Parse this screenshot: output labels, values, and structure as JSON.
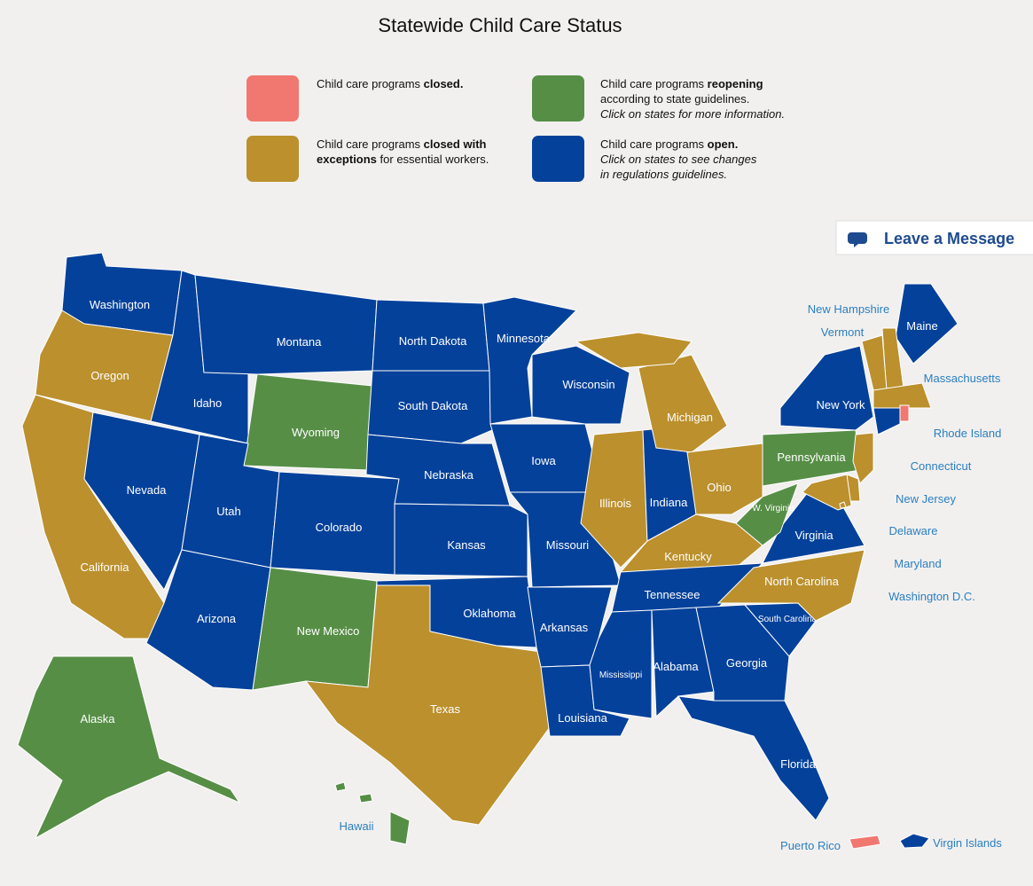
{
  "title": "Statewide Child Care Status",
  "legend": {
    "items": [
      {
        "status": "closed",
        "text": "Child care programs",
        "bold": "closed."
      },
      {
        "status": "reopening",
        "text": "Child care programs",
        "bold": "reopening",
        "rest": "according to state guidelines.",
        "note": "Click on states for more information."
      },
      {
        "status": "exceptions",
        "text": "Child care programs",
        "bold": "closed with exceptions",
        "rest": "for essential workers."
      },
      {
        "status": "open",
        "text": "Child care programs",
        "bold": "open.",
        "note": "Click on states to see changes in regulations guidelines."
      }
    ]
  },
  "statuses": {
    "closed": "#f07870",
    "exceptions": "#bb902d",
    "reopening": "#568e46",
    "open": "#04419a"
  },
  "button": "Leave a Message",
  "states": [
    {
      "name": "Washington",
      "status": "open"
    },
    {
      "name": "Oregon",
      "status": "exceptions"
    },
    {
      "name": "California",
      "status": "exceptions"
    },
    {
      "name": "Nevada",
      "status": "open"
    },
    {
      "name": "Idaho",
      "status": "open"
    },
    {
      "name": "Montana",
      "status": "open"
    },
    {
      "name": "Wyoming",
      "status": "reopening"
    },
    {
      "name": "Utah",
      "status": "open"
    },
    {
      "name": "Arizona",
      "status": "open"
    },
    {
      "name": "Colorado",
      "status": "open"
    },
    {
      "name": "New Mexico",
      "status": "reopening"
    },
    {
      "name": "North Dakota",
      "status": "open"
    },
    {
      "name": "South Dakota",
      "status": "open"
    },
    {
      "name": "Nebraska",
      "status": "open"
    },
    {
      "name": "Kansas",
      "status": "open"
    },
    {
      "name": "Oklahoma",
      "status": "open"
    },
    {
      "name": "Texas",
      "status": "exceptions"
    },
    {
      "name": "Minnesota",
      "status": "open"
    },
    {
      "name": "Iowa",
      "status": "open"
    },
    {
      "name": "Missouri",
      "status": "open"
    },
    {
      "name": "Arkansas",
      "status": "open"
    },
    {
      "name": "Louisiana",
      "status": "open"
    },
    {
      "name": "Wisconsin",
      "status": "open"
    },
    {
      "name": "Illinois",
      "status": "exceptions"
    },
    {
      "name": "Indiana",
      "status": "open"
    },
    {
      "name": "Michigan",
      "status": "exceptions"
    },
    {
      "name": "Ohio",
      "status": "exceptions"
    },
    {
      "name": "Kentucky",
      "status": "exceptions"
    },
    {
      "name": "Tennessee",
      "status": "open"
    },
    {
      "name": "Mississippi",
      "status": "open"
    },
    {
      "name": "Alabama",
      "status": "open"
    },
    {
      "name": "Georgia",
      "status": "open"
    },
    {
      "name": "Florida",
      "status": "open"
    },
    {
      "name": "South Carolina",
      "status": "open"
    },
    {
      "name": "North Carolina",
      "status": "exceptions"
    },
    {
      "name": "Virginia",
      "status": "open"
    },
    {
      "name": "W. Virginia",
      "status": "reopening"
    },
    {
      "name": "Pennsylvania",
      "status": "reopening"
    },
    {
      "name": "New York",
      "status": "open"
    },
    {
      "name": "Maine",
      "status": "open"
    },
    {
      "name": "New Hampshire",
      "status": "exceptions"
    },
    {
      "name": "Vermont",
      "status": "exceptions"
    },
    {
      "name": "Massachusetts",
      "status": "exceptions"
    },
    {
      "name": "Rhode Island",
      "status": "closed"
    },
    {
      "name": "Connecticut",
      "status": "open"
    },
    {
      "name": "New Jersey",
      "status": "exceptions"
    },
    {
      "name": "Delaware",
      "status": "exceptions"
    },
    {
      "name": "Maryland",
      "status": "exceptions"
    },
    {
      "name": "Washington D.C.",
      "status": "exceptions"
    },
    {
      "name": "Alaska",
      "status": "reopening"
    },
    {
      "name": "Hawaii",
      "status": "reopening"
    },
    {
      "name": "Puerto Rico",
      "status": "closed"
    },
    {
      "name": "Virgin Islands",
      "status": "open"
    }
  ]
}
